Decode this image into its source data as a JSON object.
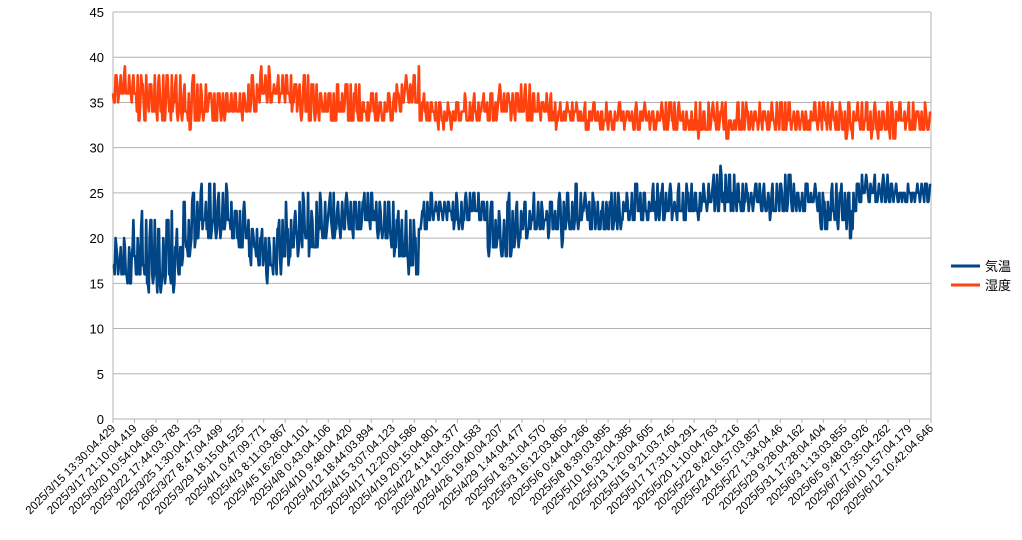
{
  "chart_data": {
    "type": "line",
    "ylim": [
      0,
      45
    ],
    "yticks": [
      0,
      5,
      10,
      15,
      20,
      25,
      30,
      35,
      40,
      45
    ],
    "grid": "horizontal",
    "legend_position": "right",
    "x_tick_labels": [
      "2025/3/15 13:30:04.429",
      "2025/3/17 21:10:04.419",
      "2025/3/20 10:54:04.666",
      "2025/3/22 17:44:03.783",
      "2025/3/25 1:30:04.753",
      "2025/3/27 8:47:04.499",
      "2025/3/29 18:15:04.525",
      "2025/4/1 0:47:09.771",
      "2025/4/3 8:11:03.867",
      "2025/4/5 16:26:04.101",
      "2025/4/8 0:43:04.106",
      "2025/4/10 9:48:04.420",
      "2025/4/12 18:44:03.894",
      "2025/4/15 3:07:04.123",
      "2025/4/17 12:20:04.586",
      "2025/4/19 20:15:04.801",
      "2025/4/22 4:14:04.377",
      "2025/4/24 12:05:04.583",
      "2025/4/26 19:40:04.207",
      "2025/4/29 1:44:04.477",
      "2025/5/1 8:31:04.570",
      "2025/5/3 16:12:03.805",
      "2025/5/6 0:44:04.266",
      "2025/5/8 8:39:03.895",
      "2025/5/10 16:32:04.385",
      "2025/5/13 1:20:04.605",
      "2025/5/15 9:21:03.745",
      "2025/5/17 17:31:04.291",
      "2025/5/20 1:10:04.763",
      "2025/5/22 8:42:04.216",
      "2025/5/24 16:57:03.857",
      "2025/5/27 1:34:04.46",
      "2025/5/29 9:28:04.162",
      "2025/5/31 17:28:04.404",
      "2025/6/3 1:13:03.855",
      "2025/6/5 9:48:03.926",
      "2025/6/7 17:35:04.262",
      "2025/6/10 1:57:04.179",
      "2025/6/12 10:42:04.646"
    ],
    "series": [
      {
        "name": "気温",
        "color": "#004586",
        "segment_ranges": [
          [
            16,
            20
          ],
          [
            15,
            20
          ],
          [
            15,
            22
          ],
          [
            15,
            25
          ],
          [
            14,
            23
          ],
          [
            14,
            22
          ],
          [
            14,
            24
          ],
          [
            14,
            21
          ],
          [
            17,
            25
          ],
          [
            18,
            25
          ],
          [
            20,
            26
          ],
          [
            20,
            26
          ],
          [
            20,
            25
          ],
          [
            21,
            26
          ],
          [
            19,
            25
          ],
          [
            19,
            24
          ],
          [
            17,
            23
          ],
          [
            16,
            22
          ],
          [
            15,
            21
          ],
          [
            16,
            22
          ],
          [
            17,
            24
          ],
          [
            18,
            25
          ],
          [
            19,
            25
          ],
          [
            18,
            24
          ],
          [
            19,
            25
          ],
          [
            20,
            25
          ],
          [
            20,
            25
          ],
          [
            20,
            25
          ],
          [
            20,
            25
          ],
          [
            21,
            25
          ],
          [
            21,
            25
          ],
          [
            20,
            24
          ],
          [
            19,
            24
          ],
          [
            18,
            24
          ],
          [
            16,
            23
          ],
          [
            16,
            22
          ],
          [
            21,
            24
          ],
          [
            22,
            25
          ],
          [
            22,
            25
          ],
          [
            22,
            25
          ],
          [
            21,
            25
          ],
          [
            21,
            25
          ],
          [
            22,
            25
          ],
          [
            22,
            25
          ],
          [
            18,
            24
          ],
          [
            18,
            24
          ],
          [
            18,
            25
          ],
          [
            19,
            24
          ],
          [
            20,
            25
          ],
          [
            20,
            25
          ],
          [
            21,
            25
          ],
          [
            20,
            25
          ],
          [
            19,
            25
          ],
          [
            21,
            25
          ],
          [
            21,
            26
          ],
          [
            22,
            25
          ],
          [
            21,
            25
          ],
          [
            20,
            25
          ],
          [
            21,
            25
          ],
          [
            21,
            25
          ],
          [
            22,
            25
          ],
          [
            22,
            26
          ],
          [
            22,
            25
          ],
          [
            22,
            26
          ],
          [
            22,
            26
          ],
          [
            22,
            26
          ],
          [
            22,
            26
          ],
          [
            22,
            26
          ],
          [
            22,
            26
          ],
          [
            23,
            26
          ],
          [
            23,
            27
          ],
          [
            23,
            28
          ],
          [
            23,
            28
          ],
          [
            23,
            26
          ],
          [
            23,
            26
          ],
          [
            23,
            26
          ],
          [
            23,
            26
          ],
          [
            22,
            26
          ],
          [
            23,
            27
          ],
          [
            23,
            28
          ],
          [
            23,
            26
          ],
          [
            23,
            26
          ],
          [
            23,
            26
          ],
          [
            21,
            26
          ],
          [
            22,
            26
          ],
          [
            21,
            26
          ],
          [
            20,
            27
          ],
          [
            23,
            27
          ],
          [
            24,
            27
          ],
          [
            24,
            27
          ],
          [
            24,
            27
          ],
          [
            24,
            26
          ],
          [
            24,
            26
          ],
          [
            24,
            26
          ],
          [
            24,
            26
          ],
          [
            24,
            26
          ]
        ]
      },
      {
        "name": "湿度",
        "color": "#ff420e",
        "segment_ranges": [
          [
            35,
            38
          ],
          [
            35,
            39
          ],
          [
            34,
            39
          ],
          [
            33,
            39
          ],
          [
            33,
            39
          ],
          [
            33,
            39
          ],
          [
            33,
            39
          ],
          [
            33,
            39
          ],
          [
            33,
            38
          ],
          [
            32,
            38
          ],
          [
            33,
            37
          ],
          [
            33,
            37
          ],
          [
            33,
            37
          ],
          [
            33,
            37
          ],
          [
            33,
            37
          ],
          [
            33,
            37
          ],
          [
            34,
            38
          ],
          [
            35,
            39
          ],
          [
            35,
            39
          ],
          [
            35,
            39
          ],
          [
            35,
            38
          ],
          [
            34,
            38
          ],
          [
            33,
            38
          ],
          [
            33,
            37
          ],
          [
            33,
            37
          ],
          [
            33,
            37
          ],
          [
            33,
            37
          ],
          [
            33,
            37
          ],
          [
            33,
            37
          ],
          [
            33,
            36
          ],
          [
            33,
            37
          ],
          [
            33,
            36
          ],
          [
            33,
            37
          ],
          [
            34,
            38
          ],
          [
            34,
            38
          ],
          [
            35,
            39
          ],
          [
            33,
            36
          ],
          [
            33,
            35
          ],
          [
            32,
            35
          ],
          [
            32,
            35
          ],
          [
            33,
            35
          ],
          [
            33,
            36
          ],
          [
            33,
            36
          ],
          [
            33,
            36
          ],
          [
            33,
            36
          ],
          [
            33,
            37
          ],
          [
            33,
            37
          ],
          [
            33,
            37
          ],
          [
            33,
            37
          ],
          [
            33,
            36
          ],
          [
            33,
            36
          ],
          [
            33,
            36
          ],
          [
            32,
            35
          ],
          [
            33,
            35
          ],
          [
            33,
            35
          ],
          [
            32,
            35
          ],
          [
            33,
            35
          ],
          [
            32,
            35
          ],
          [
            32,
            35
          ],
          [
            33,
            35
          ],
          [
            32,
            35
          ],
          [
            32,
            35
          ],
          [
            33,
            35
          ],
          [
            32,
            35
          ],
          [
            32,
            35
          ],
          [
            32,
            35
          ],
          [
            32,
            35
          ],
          [
            32,
            34
          ],
          [
            31,
            35
          ],
          [
            31,
            35
          ],
          [
            32,
            35
          ],
          [
            32,
            35
          ],
          [
            31,
            34
          ],
          [
            32,
            35
          ],
          [
            32,
            35
          ],
          [
            32,
            35
          ],
          [
            32,
            35
          ],
          [
            32,
            35
          ],
          [
            32,
            35
          ],
          [
            32,
            35
          ],
          [
            32,
            35
          ],
          [
            32,
            34
          ],
          [
            32,
            35
          ],
          [
            32,
            36
          ],
          [
            32,
            35
          ],
          [
            31,
            35
          ],
          [
            31,
            35
          ],
          [
            32,
            35
          ],
          [
            31,
            35
          ],
          [
            31,
            35
          ],
          [
            31,
            35
          ],
          [
            31,
            35
          ],
          [
            32,
            35
          ],
          [
            32,
            35
          ],
          [
            32,
            35
          ],
          [
            32,
            35
          ]
        ]
      }
    ]
  }
}
